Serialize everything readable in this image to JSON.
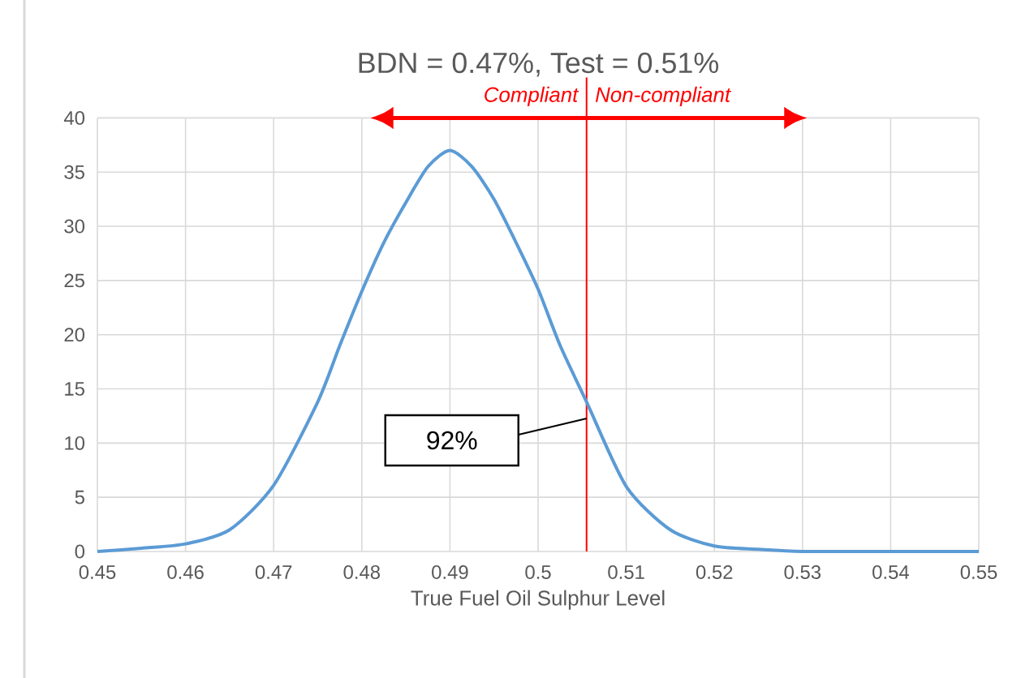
{
  "chart_data": {
    "type": "line",
    "title": "BDN = 0.47%, Test = 0.51%",
    "xlabel": "True Fuel Oil Sulphur Level",
    "x": [
      0.45,
      0.455,
      0.46,
      0.465,
      0.47,
      0.475,
      0.4775,
      0.48,
      0.4825,
      0.485,
      0.4875,
      0.49,
      0.4925,
      0.495,
      0.4975,
      0.5,
      0.5025,
      0.5055,
      0.51,
      0.515,
      0.52,
      0.525,
      0.53,
      0.54,
      0.55
    ],
    "series": [
      {
        "color": "#5b9bd5",
        "values": [
          0,
          0.3,
          0.7,
          2,
          6.1,
          13.8,
          19,
          24,
          28.5,
          32.2,
          35.5,
          37,
          35.5,
          32.5,
          28.5,
          24.2,
          19,
          13.8,
          6,
          2,
          0.5,
          0.2,
          0,
          0,
          0
        ]
      }
    ],
    "xlim": [
      0.45,
      0.55
    ],
    "xticks": [
      0.45,
      0.46,
      0.47,
      0.48,
      0.49,
      0.5,
      0.51,
      0.52,
      0.53,
      0.54,
      0.55
    ],
    "ylim": [
      0,
      40
    ],
    "yticks": [
      0,
      5,
      10,
      15,
      20,
      25,
      30,
      35,
      40
    ],
    "grid": true,
    "marker": "none",
    "line_style": "solid",
    "ref_lines": [
      {
        "axis": "x",
        "value": 0.5055,
        "color": "#ff0000"
      }
    ],
    "annotations": [
      "92%",
      "Compliant",
      "Non-compliant"
    ]
  }
}
